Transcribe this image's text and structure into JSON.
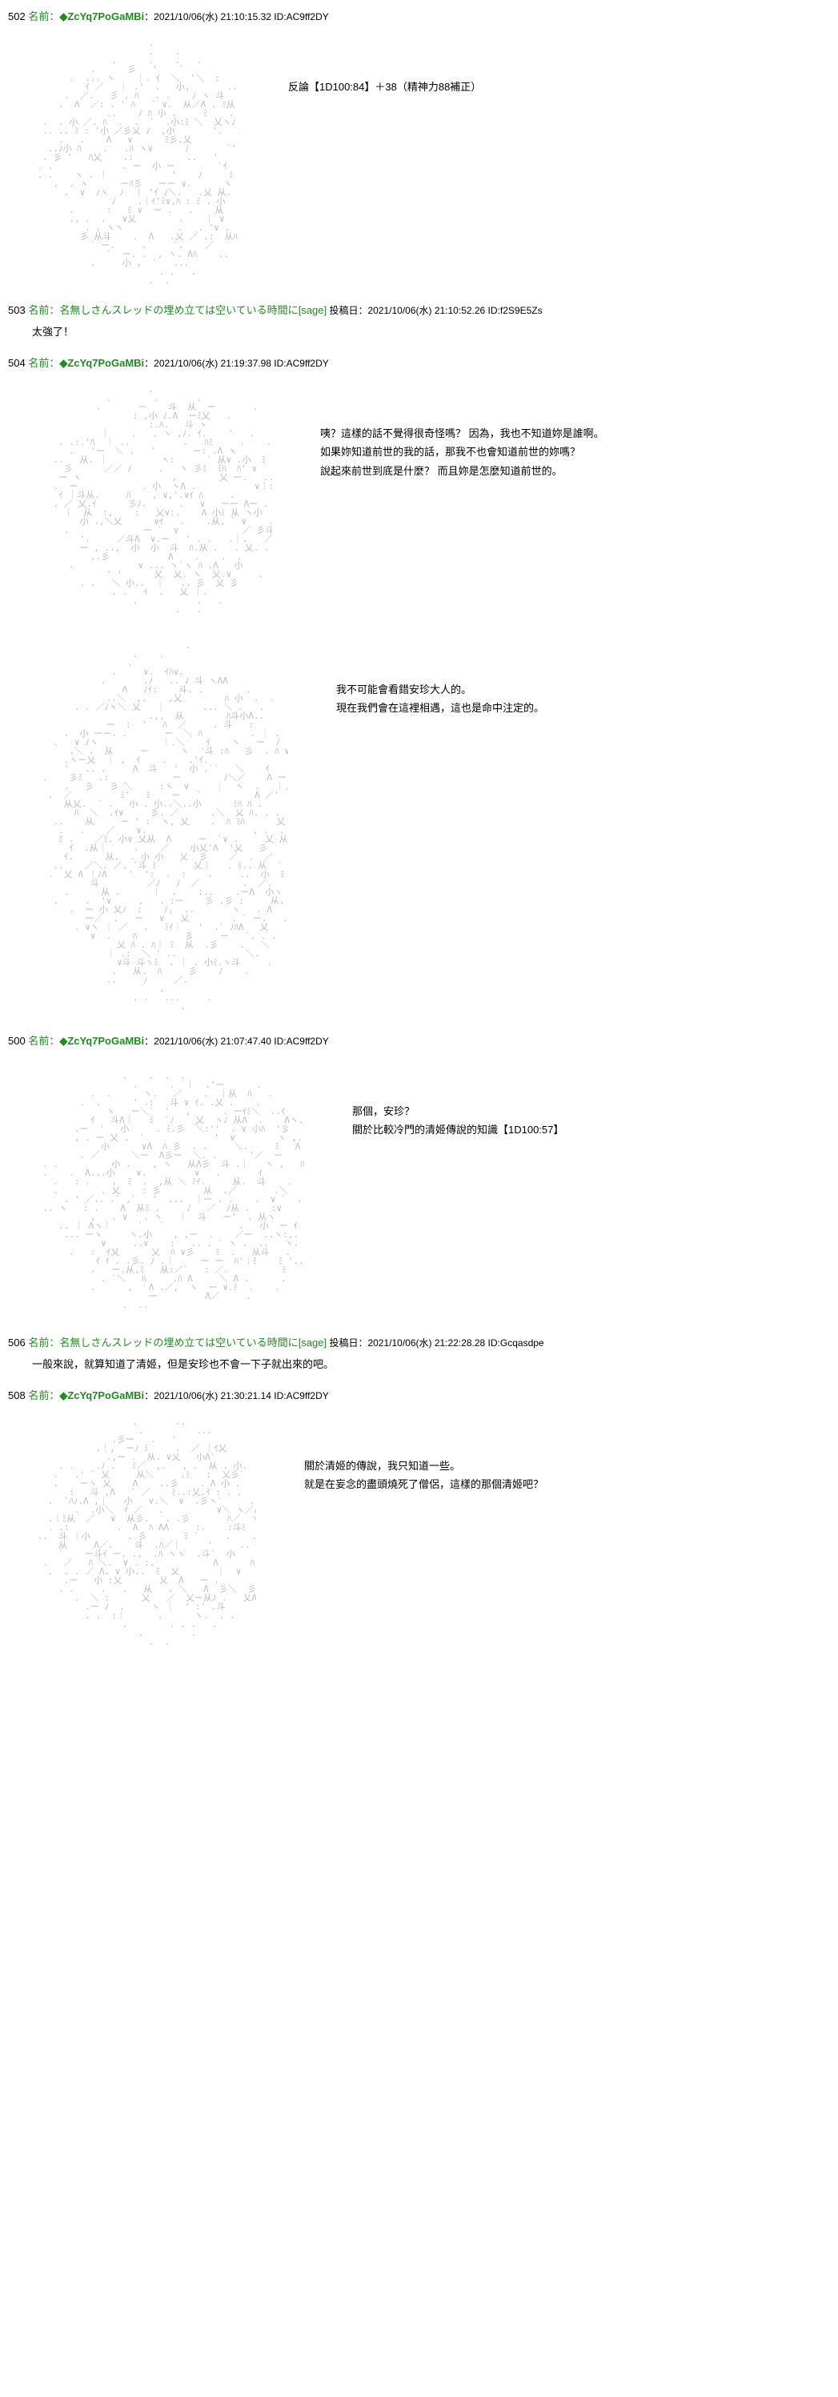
{
  "posts": [
    {
      "num": "502",
      "name_label": "名前：",
      "tripcode": "◆ZcYq7PoGaMBi",
      "date": "：2021/10/06(水) 21:10:15.32 ID:AC9ff2DY",
      "aa_w": 260,
      "aa_h": 320,
      "message_lines": [
        "反論【1D100:84】＋38（精神力88補正）"
      ],
      "single": false
    },
    {
      "num": "503",
      "name_label": "名前：",
      "anon_name": "名無しさんスレッドの埋め立ては空いている時間に",
      "sage": "[sage]",
      "date": " 投稿日：2021/10/06(水) 21:10:52.26 ID:f2S9E5Zs",
      "aa_w": 0,
      "aa_h": 0,
      "message_lines": [
        "太強了！"
      ],
      "single": true
    },
    {
      "num": "504",
      "name_label": "名前：",
      "tripcode": "◆ZcYq7PoGaMBi",
      "date": "：2021/10/06(水) 21:19:37.98 ID:AC9ff2DY",
      "aa_w": 300,
      "aa_h": 300,
      "message_lines": [
        "咦？這樣的話不覺得很奇怪嗎？ 因為，我也不知道妳是誰啊。",
        "如果妳知道前世的我的話，那我不也會知道前世的妳嗎？",
        "說起來前世到底是什麼？ 而且妳是怎麼知道前世的。"
      ],
      "single": false
    },
    {
      "num": "",
      "aa_w": 320,
      "aa_h": 480,
      "message_lines": [
        "我不可能會看錯安珍大人的。",
        "現在我們會在這裡相遇，這也是命中注定的。"
      ],
      "single": false,
      "no_header": true
    },
    {
      "num": "500",
      "name_label": "名前：",
      "tripcode": "◆ZcYq7PoGaMBi",
      "date": "：2021/10/06(水) 21:07:47.40 ID:AC9ff2DY",
      "aa_w": 340,
      "aa_h": 330,
      "message_lines": [
        "那個，安珍？",
        "關於比較冷門的清姬傳說的知識【1D100:57】"
      ],
      "single": false
    },
    {
      "num": "506",
      "name_label": "名前：",
      "anon_name": "名無しさんスレッドの埋め立ては空いている時間に",
      "sage": "[sage]",
      "date": " 投稿日：2021/10/06(水) 21:22:28.28 ID:Gcqasdpe",
      "aa_w": 0,
      "aa_h": 0,
      "message_lines": [
        "一般來說，就算知道了清姬，但是安珍也不會一下子就出來的吧。"
      ],
      "single": true
    },
    {
      "num": "508",
      "name_label": "名前：",
      "tripcode": "◆ZcYq7PoGaMBi",
      "date": "：2021/10/06(水) 21:30:21.14 ID:AC9ff2DY",
      "aa_w": 280,
      "aa_h": 300,
      "message_lines": [
        "關於清姬的傳說，我只知道一些。",
        "就是在妄念的盡頭燒死了僧侶，這樣的那個清姬吧？"
      ],
      "single": false
    }
  ]
}
